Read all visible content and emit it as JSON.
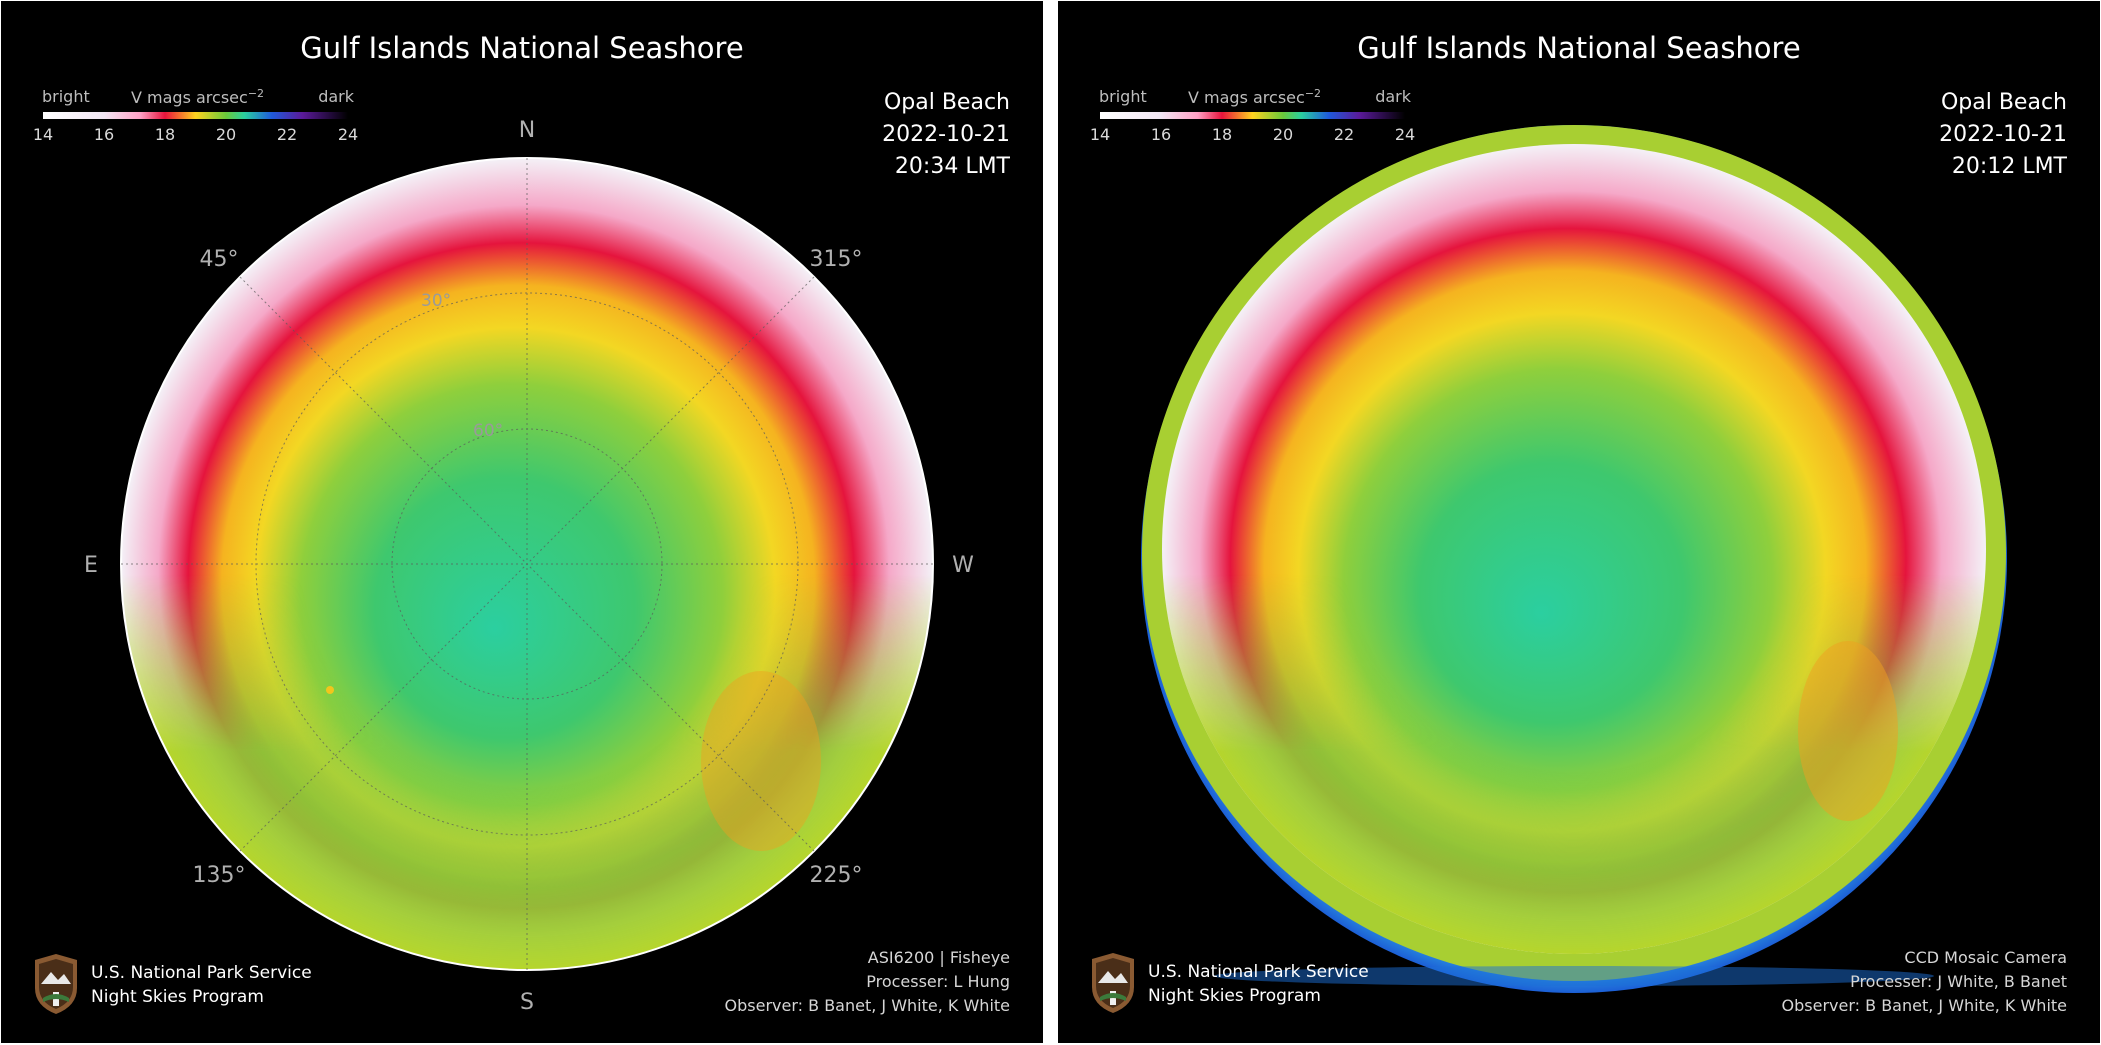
{
  "colors": {
    "background": "#000000",
    "divider": "#ffffff",
    "text": "#ffffff",
    "axis_label": "#b0b0b0",
    "grid": "#5a5a5a"
  },
  "colorbar": {
    "bright_label": "bright",
    "unit_label": "V mags arcsec",
    "unit_exponent": "−2",
    "dark_label": "dark",
    "ticks": [
      "14",
      "16",
      "18",
      "20",
      "22",
      "24"
    ]
  },
  "footer": {
    "org_line1": "U.S. National Park Service",
    "org_line2": "Night Skies Program",
    "logo_icon": "nps-arrowhead-icon"
  },
  "panels": [
    {
      "title": "Gulf Islands National Seashore",
      "location": "Opal Beach",
      "date": "2022-10-21",
      "time": "20:34 LMT",
      "camera": "ASI6200 | Fisheye",
      "processor": "Processer: L Hung",
      "observer": "Observer: B Banet, J White, K White",
      "compass": {
        "north": "N",
        "south": "S",
        "east": "E",
        "west": "W"
      },
      "azimuth_labels": [
        "45°",
        "315°",
        "135°",
        "225°"
      ],
      "altitude_labels": [
        "30°",
        "60°"
      ]
    },
    {
      "title": "Gulf Islands National Seashore",
      "location": "Opal Beach",
      "date": "2022-10-21",
      "time": "20:12 LMT",
      "camera": "CCD Mosaic Camera",
      "processor": "Processer: J White, B Banet",
      "observer": "Observer: B Banet, J White, K White"
    }
  ],
  "chart_data": [
    {
      "type": "heatmap",
      "projection": "polar all-sky (zenith at center, horizon at rim)",
      "title": "Gulf Islands National Seashore",
      "colorbar": {
        "label": "V mags arcsec−2",
        "range": [
          14,
          24
        ],
        "ticks": [
          14,
          16,
          18,
          20,
          22,
          24
        ],
        "low_end": "bright",
        "high_end": "dark",
        "colormap_stops": [
          {
            "mag": 14,
            "color": "#ffffff"
          },
          {
            "mag": 16,
            "color": "#f2e6f4"
          },
          {
            "mag": 17.2,
            "color": "#ff9fc4"
          },
          {
            "mag": 18,
            "color": "#e8143c"
          },
          {
            "mag": 19,
            "color": "#ffd21f"
          },
          {
            "mag": 20,
            "color": "#6ac93a"
          },
          {
            "mag": 20.6,
            "color": "#2acf9f"
          },
          {
            "mag": 21.5,
            "color": "#1f5adc"
          },
          {
            "mag": 22.5,
            "color": "#5a1a9a"
          },
          {
            "mag": 24,
            "color": "#000000"
          }
        ]
      },
      "azimuth_ticks": [
        "45°",
        "315°",
        "135°",
        "225°"
      ],
      "altitude_ticks": [
        "30°",
        "60°"
      ],
      "zenith_mag": 20.6,
      "horizon_ring_mag_range": [
        16,
        18
      ]
    },
    {
      "type": "heatmap",
      "projection": "polar all-sky (zenith at center, horizon at rim)",
      "title": "Gulf Islands National Seashore",
      "colorbar": {
        "label": "V mags arcsec−2",
        "range": [
          14,
          24
        ],
        "ticks": [
          14,
          16,
          18,
          20,
          22,
          24
        ]
      },
      "zenith_mag": 20.6,
      "horizon_ring_mag_range": [
        16,
        18
      ]
    }
  ]
}
